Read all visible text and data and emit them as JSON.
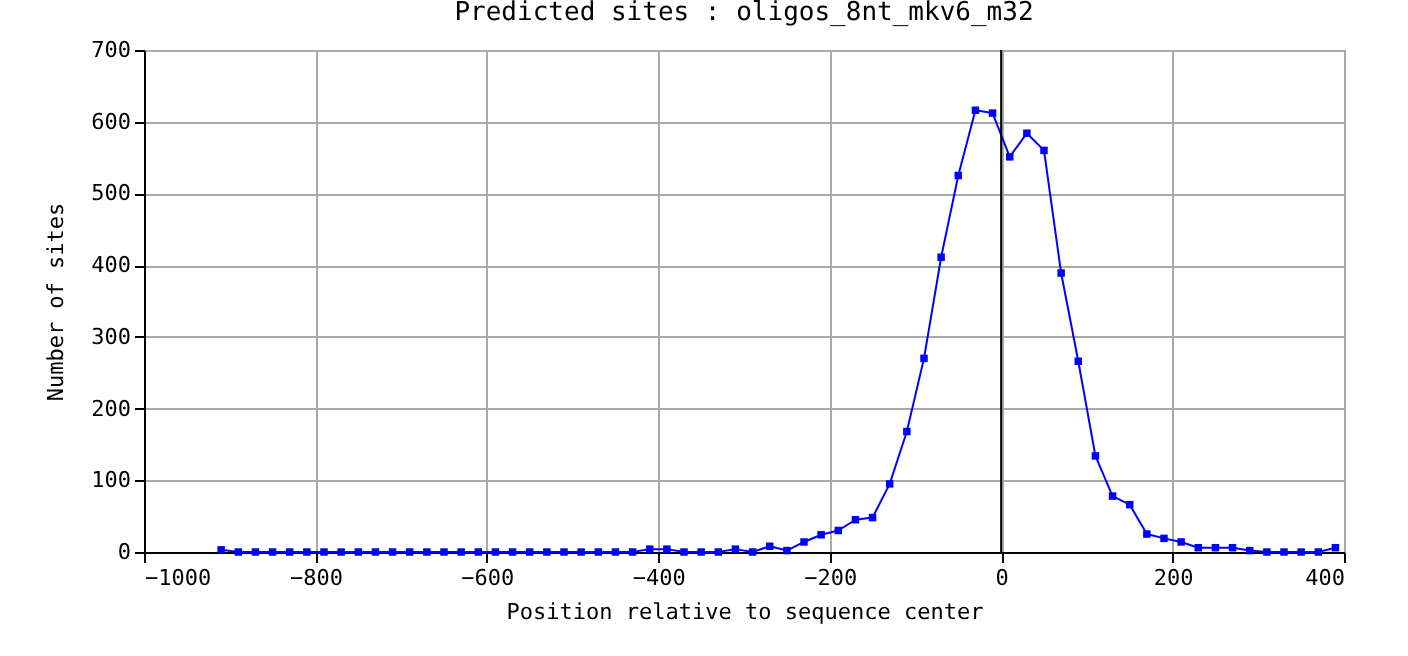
{
  "chart_data": {
    "type": "line",
    "title": "Predicted sites : oligos_8nt_mkv6_m32",
    "xlabel": "Position relative to sequence center",
    "ylabel": "Number of sites",
    "x": [
      -910,
      -890,
      -870,
      -850,
      -830,
      -810,
      -790,
      -770,
      -750,
      -730,
      -710,
      -690,
      -670,
      -650,
      -630,
      -610,
      -590,
      -570,
      -550,
      -530,
      -510,
      -490,
      -470,
      -450,
      -430,
      -410,
      -390,
      -370,
      -350,
      -330,
      -310,
      -290,
      -270,
      -250,
      -230,
      -210,
      -190,
      -170,
      -150,
      -130,
      -110,
      -90,
      -70,
      -50,
      -30,
      -10,
      10,
      30,
      50,
      70,
      90,
      110,
      130,
      150,
      170,
      190,
      210,
      230,
      250,
      270,
      290,
      310,
      330,
      350,
      370,
      390
    ],
    "series": [
      {
        "color": "#0000ff",
        "values": [
          3,
          0,
          0,
          0,
          0,
          0,
          0,
          0,
          0,
          0,
          0,
          0,
          0,
          0,
          0,
          0,
          0,
          0,
          0,
          0,
          0,
          0,
          0,
          0,
          0,
          4,
          4,
          0,
          0,
          0,
          4,
          0,
          8,
          2,
          14,
          24,
          30,
          45,
          48,
          95,
          168,
          270,
          411,
          525,
          616,
          612,
          551,
          584,
          560,
          389,
          266,
          134,
          78,
          66,
          25,
          19,
          14,
          6,
          6,
          6,
          2,
          0,
          0,
          0,
          0,
          6
        ]
      }
    ],
    "xlim": [
      -1000,
      400
    ],
    "xticks": [
      -1000,
      -800,
      -600,
      -400,
      -200,
      0,
      200,
      400
    ],
    "ylim": [
      0,
      700
    ],
    "yticks": [
      0,
      100,
      200,
      300,
      400,
      500,
      600,
      700
    ],
    "grid": true,
    "marker": "square",
    "line_style": "solid",
    "ref_lines": [
      {
        "axis": "x",
        "value": 0,
        "color": "#000000"
      }
    ]
  }
}
